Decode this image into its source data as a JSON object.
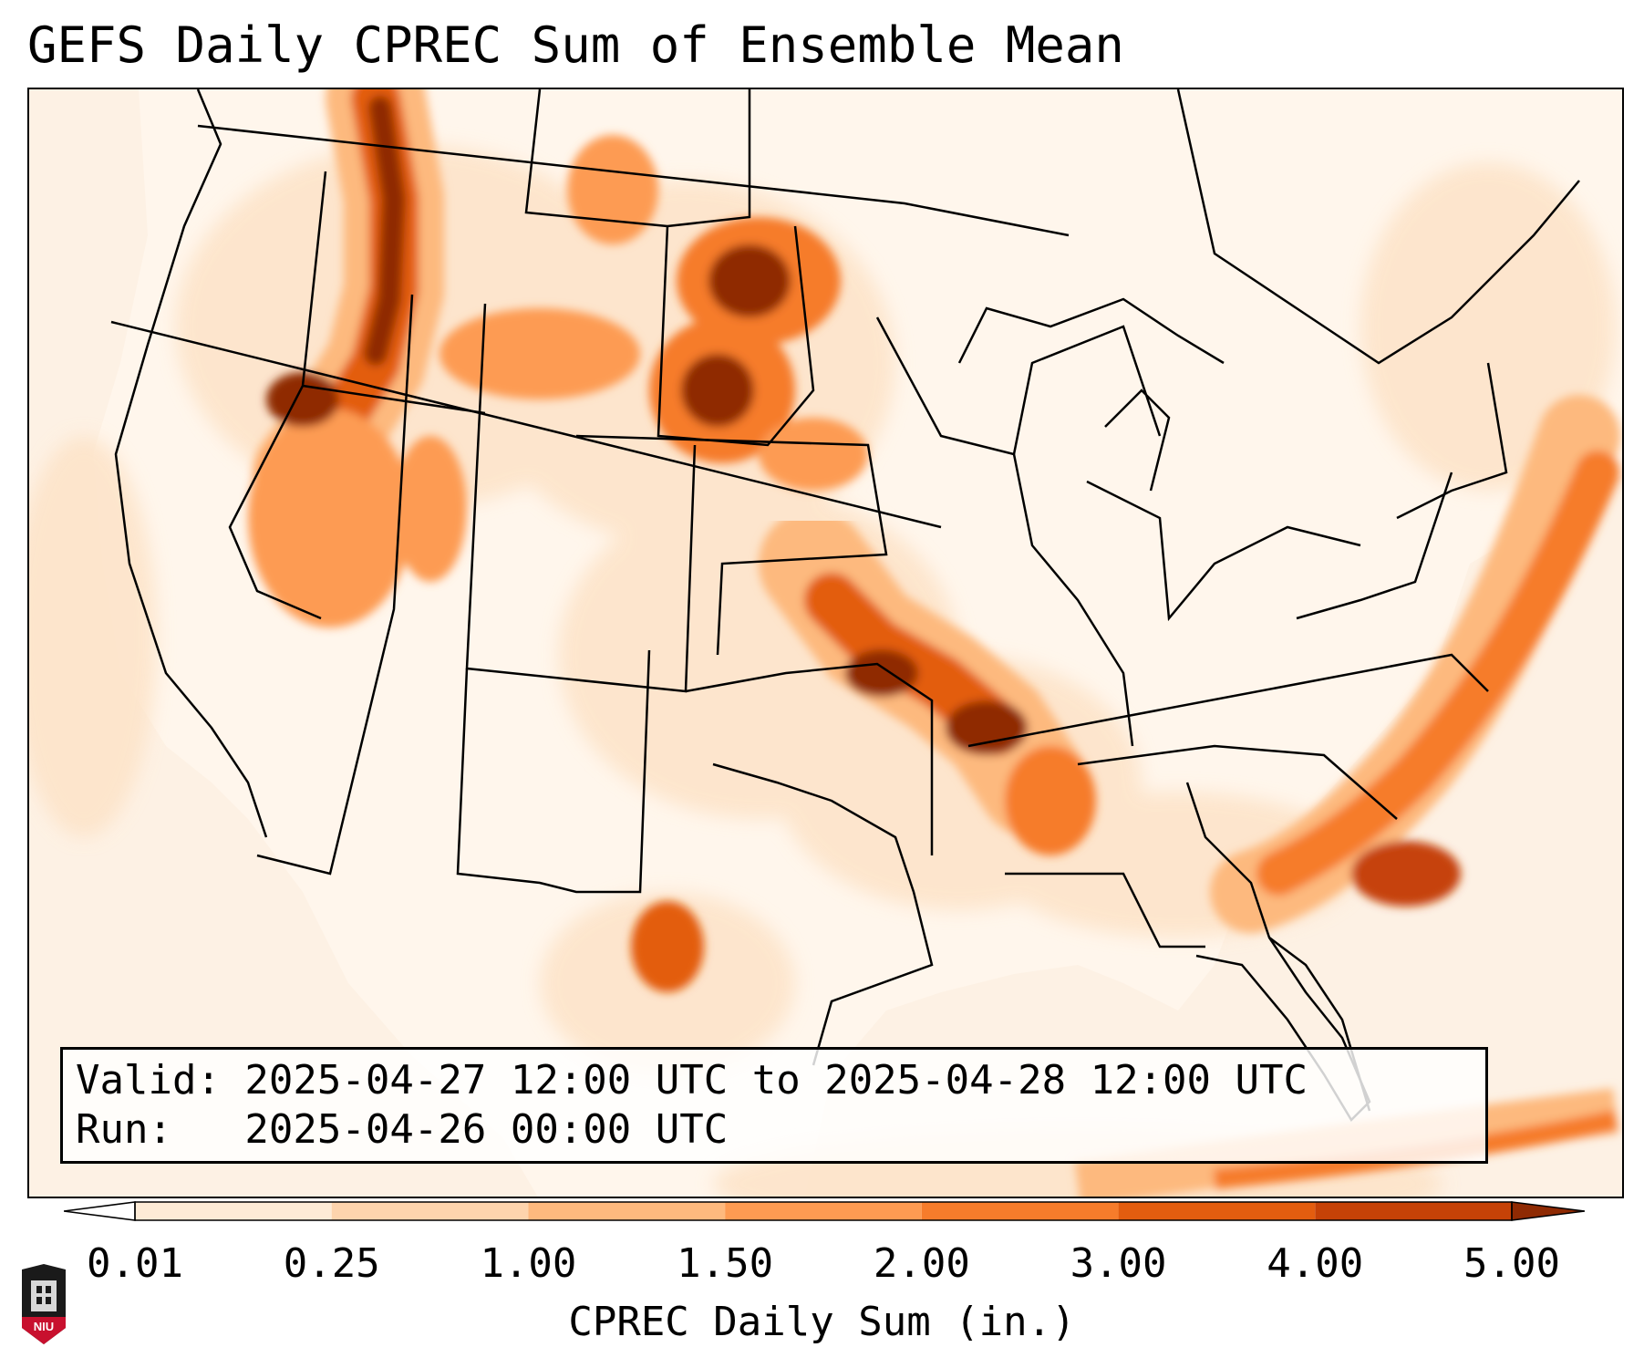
{
  "title": "GEFS Daily CPREC Sum of Ensemble Mean",
  "info": {
    "valid": "Valid: 2025-04-27 12:00 UTC to 2025-04-28 12:00 UTC",
    "run": "Run:   2025-04-26 00:00 UTC"
  },
  "colorbar": {
    "label": "CPREC Daily Sum (in.)",
    "ticks": [
      "0.01",
      "0.25",
      "1.00",
      "1.50",
      "2.00",
      "3.00",
      "4.00",
      "5.00"
    ],
    "colors": [
      "#fdebd6",
      "#fdd4ad",
      "#fdb97e",
      "#fd9b52",
      "#f67c2b",
      "#e35d0f",
      "#c64207",
      "#8f2a03"
    ]
  },
  "logo": {
    "text": "NIU"
  },
  "precip_areas": [
    {
      "name": "pacific-northwest-idaho",
      "level": 7
    },
    {
      "name": "northern-plains",
      "level": 7
    },
    {
      "name": "southern-plains-arkansas",
      "level": 7
    },
    {
      "name": "atlantic-offshore-band",
      "level": 6
    },
    {
      "name": "south-texas",
      "level": 5
    },
    {
      "name": "mississippi-alabama",
      "level": 4
    }
  ]
}
